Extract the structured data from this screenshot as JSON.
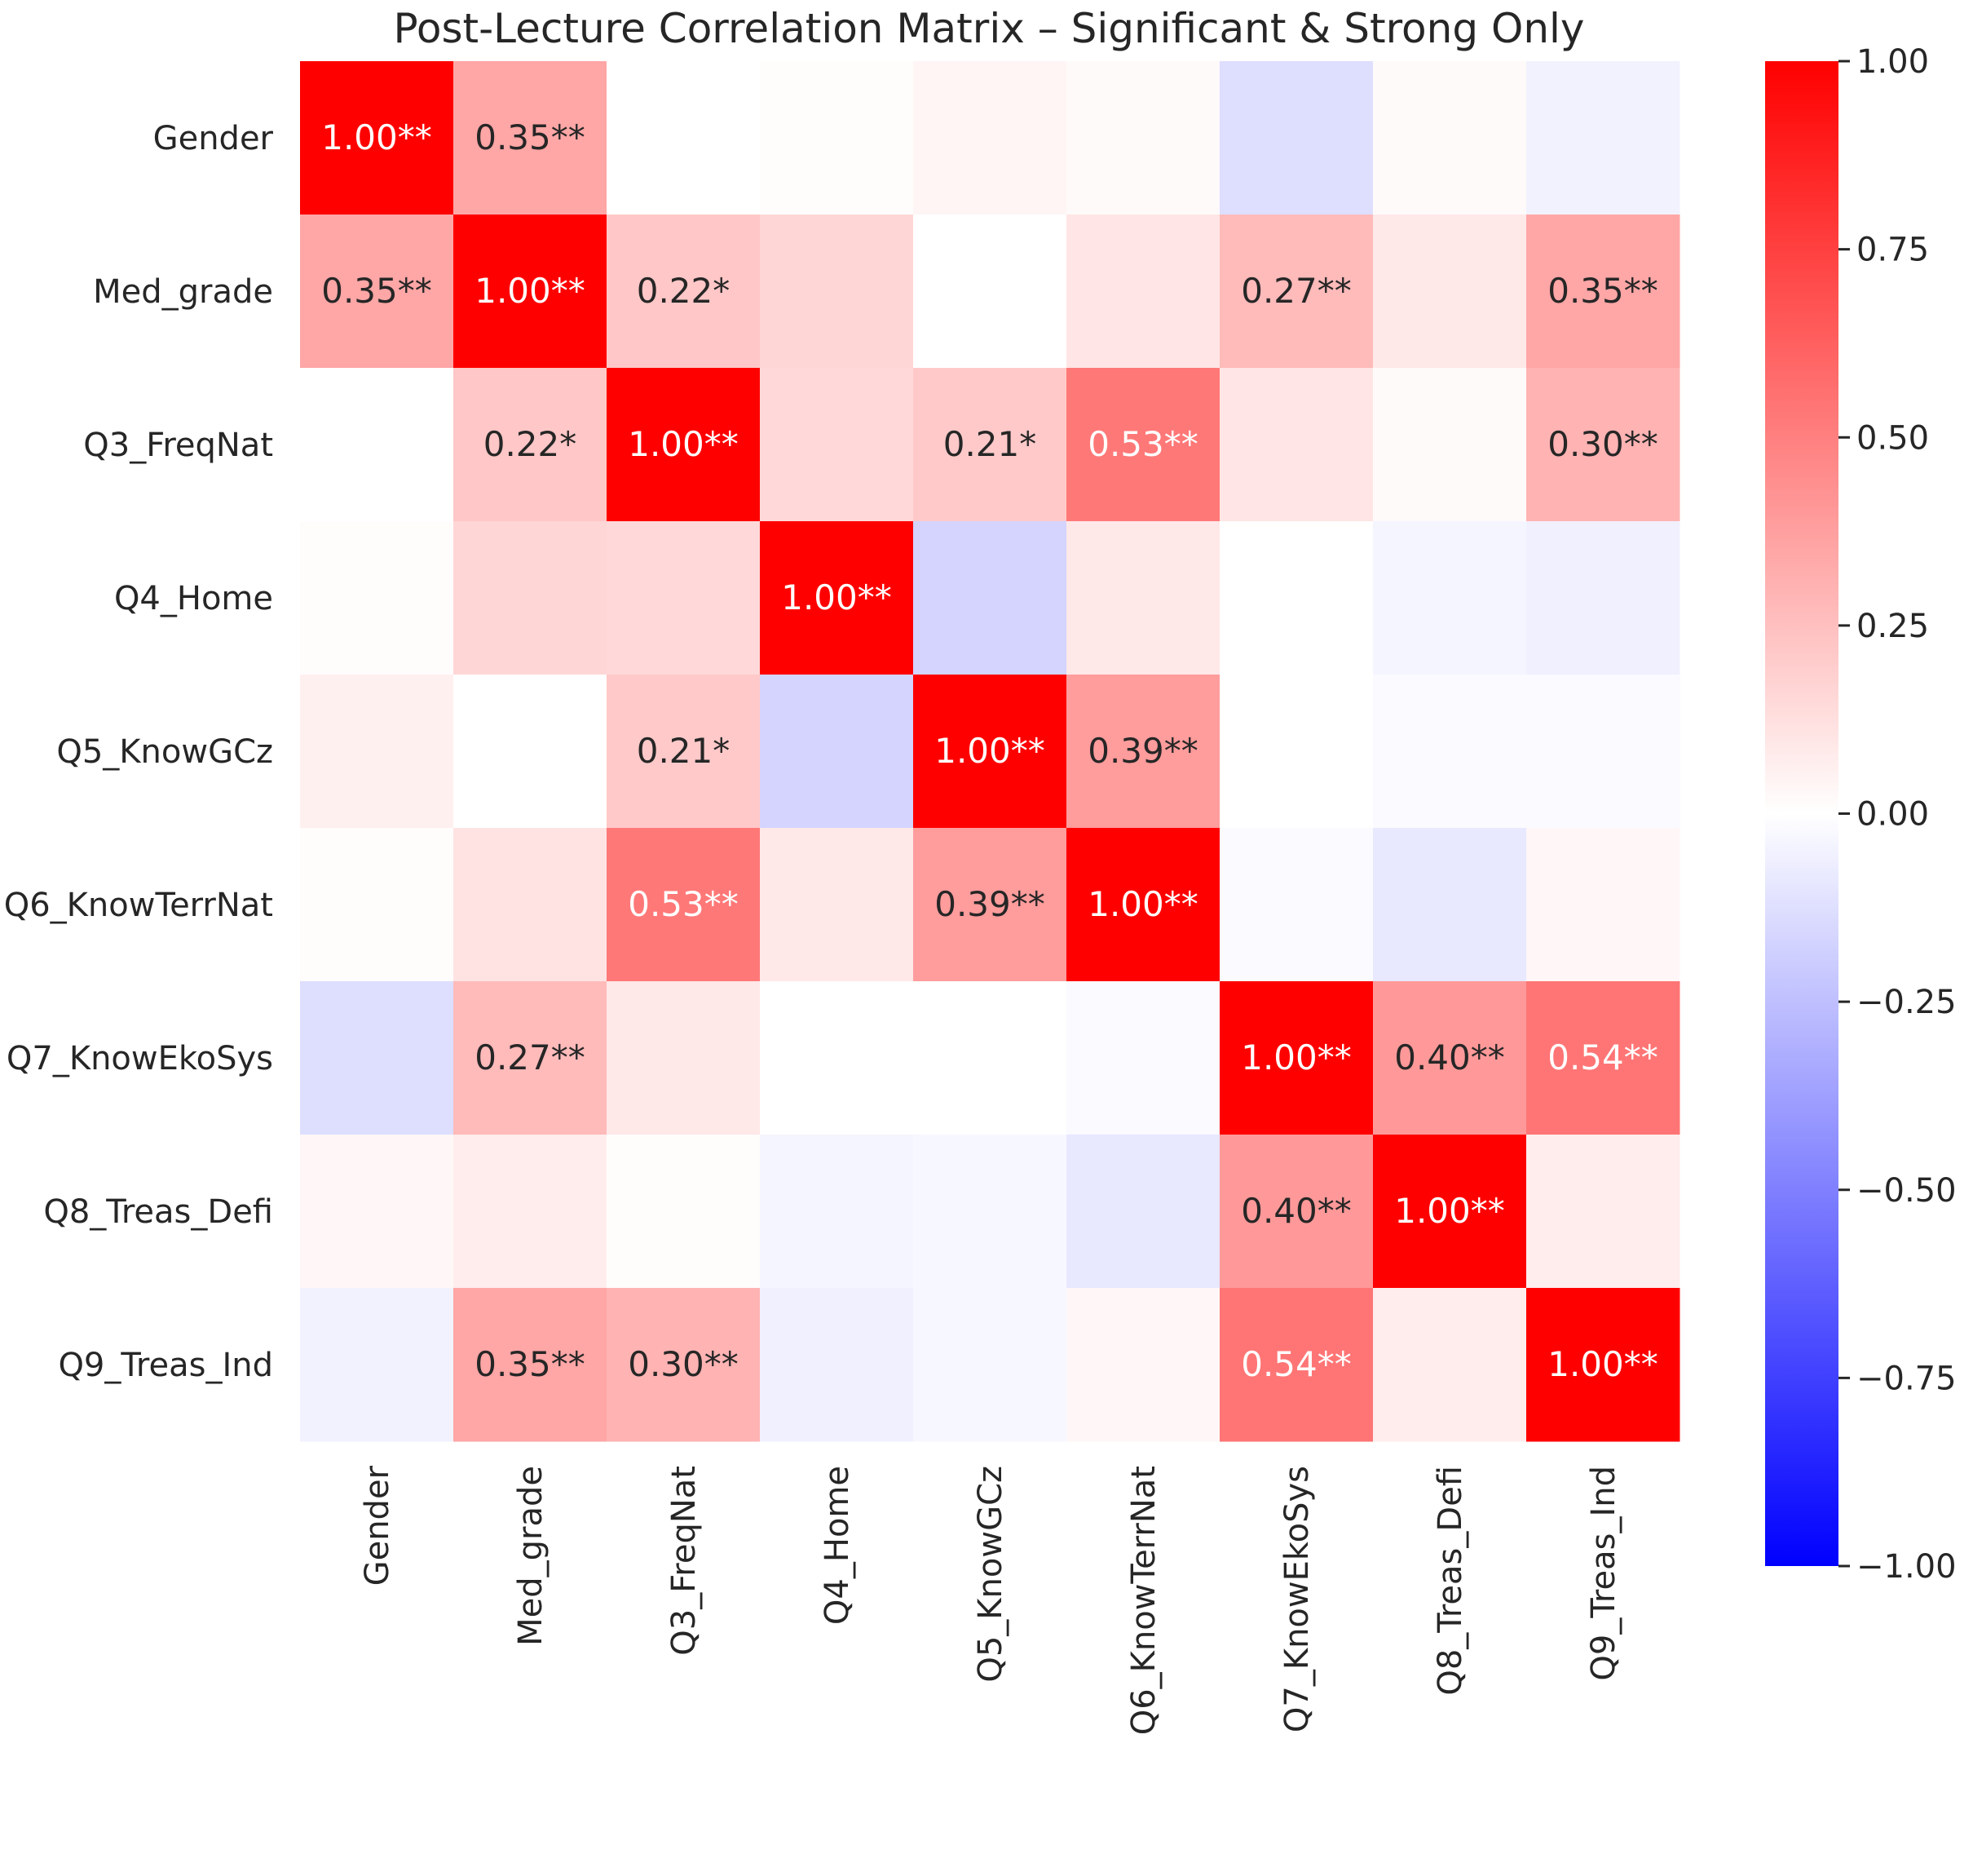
{
  "chart_data": {
    "type": "heatmap",
    "title": "Post-Lecture Correlation Matrix – Significant & Strong Only",
    "variables": [
      "Gender",
      "Med_grade",
      "Q3_FreqNat",
      "Q4_Home",
      "Q5_KnowGCz",
      "Q6_KnowTerrNat",
      "Q7_KnowEkoSys",
      "Q8_Treas_Defi",
      "Q9_Treas_Ind"
    ],
    "values": [
      [
        1.0,
        0.35,
        0.0,
        0.01,
        0.04,
        0.02,
        -0.13,
        0.02,
        -0.05
      ],
      [
        0.35,
        1.0,
        0.22,
        0.16,
        0.0,
        0.1,
        0.27,
        0.09,
        0.35
      ],
      [
        0.0,
        0.22,
        1.0,
        0.15,
        0.21,
        0.53,
        0.1,
        0.02,
        0.3
      ],
      [
        0.01,
        0.16,
        0.15,
        1.0,
        -0.17,
        0.09,
        0.0,
        -0.04,
        -0.06
      ],
      [
        0.06,
        0.0,
        0.21,
        -0.17,
        1.0,
        0.39,
        0.0,
        -0.02,
        -0.02
      ],
      [
        0.01,
        0.11,
        0.53,
        0.09,
        0.39,
        1.0,
        -0.02,
        -0.09,
        0.03
      ],
      [
        -0.13,
        0.27,
        0.09,
        0.0,
        0.0,
        -0.02,
        1.0,
        0.4,
        0.54
      ],
      [
        0.03,
        0.07,
        0.01,
        -0.04,
        -0.03,
        -0.09,
        0.4,
        1.0,
        0.07
      ],
      [
        -0.05,
        0.35,
        0.3,
        -0.06,
        -0.03,
        0.03,
        0.54,
        0.07,
        1.0
      ]
    ],
    "annotations": [
      [
        "1.00**",
        "0.35**",
        "",
        "",
        "",
        "",
        "",
        "",
        ""
      ],
      [
        "0.35**",
        "1.00**",
        "0.22*",
        "",
        "",
        "",
        "0.27**",
        "",
        "0.35**"
      ],
      [
        "",
        "0.22*",
        "1.00**",
        "",
        "0.21*",
        "0.53**",
        "",
        "",
        "0.30**"
      ],
      [
        "",
        "",
        "",
        "1.00**",
        "",
        "",
        "",
        "",
        ""
      ],
      [
        "",
        "",
        "0.21*",
        "",
        "1.00**",
        "0.39**",
        "",
        "",
        ""
      ],
      [
        "",
        "",
        "0.53**",
        "",
        "0.39**",
        "1.00**",
        "",
        "",
        ""
      ],
      [
        "",
        "0.27**",
        "",
        "",
        "",
        "",
        "1.00**",
        "0.40**",
        "0.54**"
      ],
      [
        "",
        "",
        "",
        "",
        "",
        "",
        "0.40**",
        "1.00**",
        ""
      ],
      [
        "",
        "0.35**",
        "0.30**",
        "",
        "",
        "",
        "0.54**",
        "",
        "1.00**"
      ]
    ],
    "colorscale": {
      "name": "bwr",
      "min": -1.0,
      "max": 1.0,
      "low_color": "#0000ff",
      "mid_color": "#ffffff",
      "high_color": "#ff0000",
      "ticks": [
        1.0,
        0.75,
        0.5,
        0.25,
        0.0,
        -0.25,
        -0.5,
        -0.75,
        -1.0
      ],
      "tick_labels": [
        "1.00",
        "0.75",
        "0.50",
        "0.25",
        "0.00",
        "−0.25",
        "−0.50",
        "−0.75",
        "−1.00"
      ]
    },
    "xlabel": "",
    "ylabel": "",
    "grid": false,
    "legend": "colorbar-right"
  }
}
